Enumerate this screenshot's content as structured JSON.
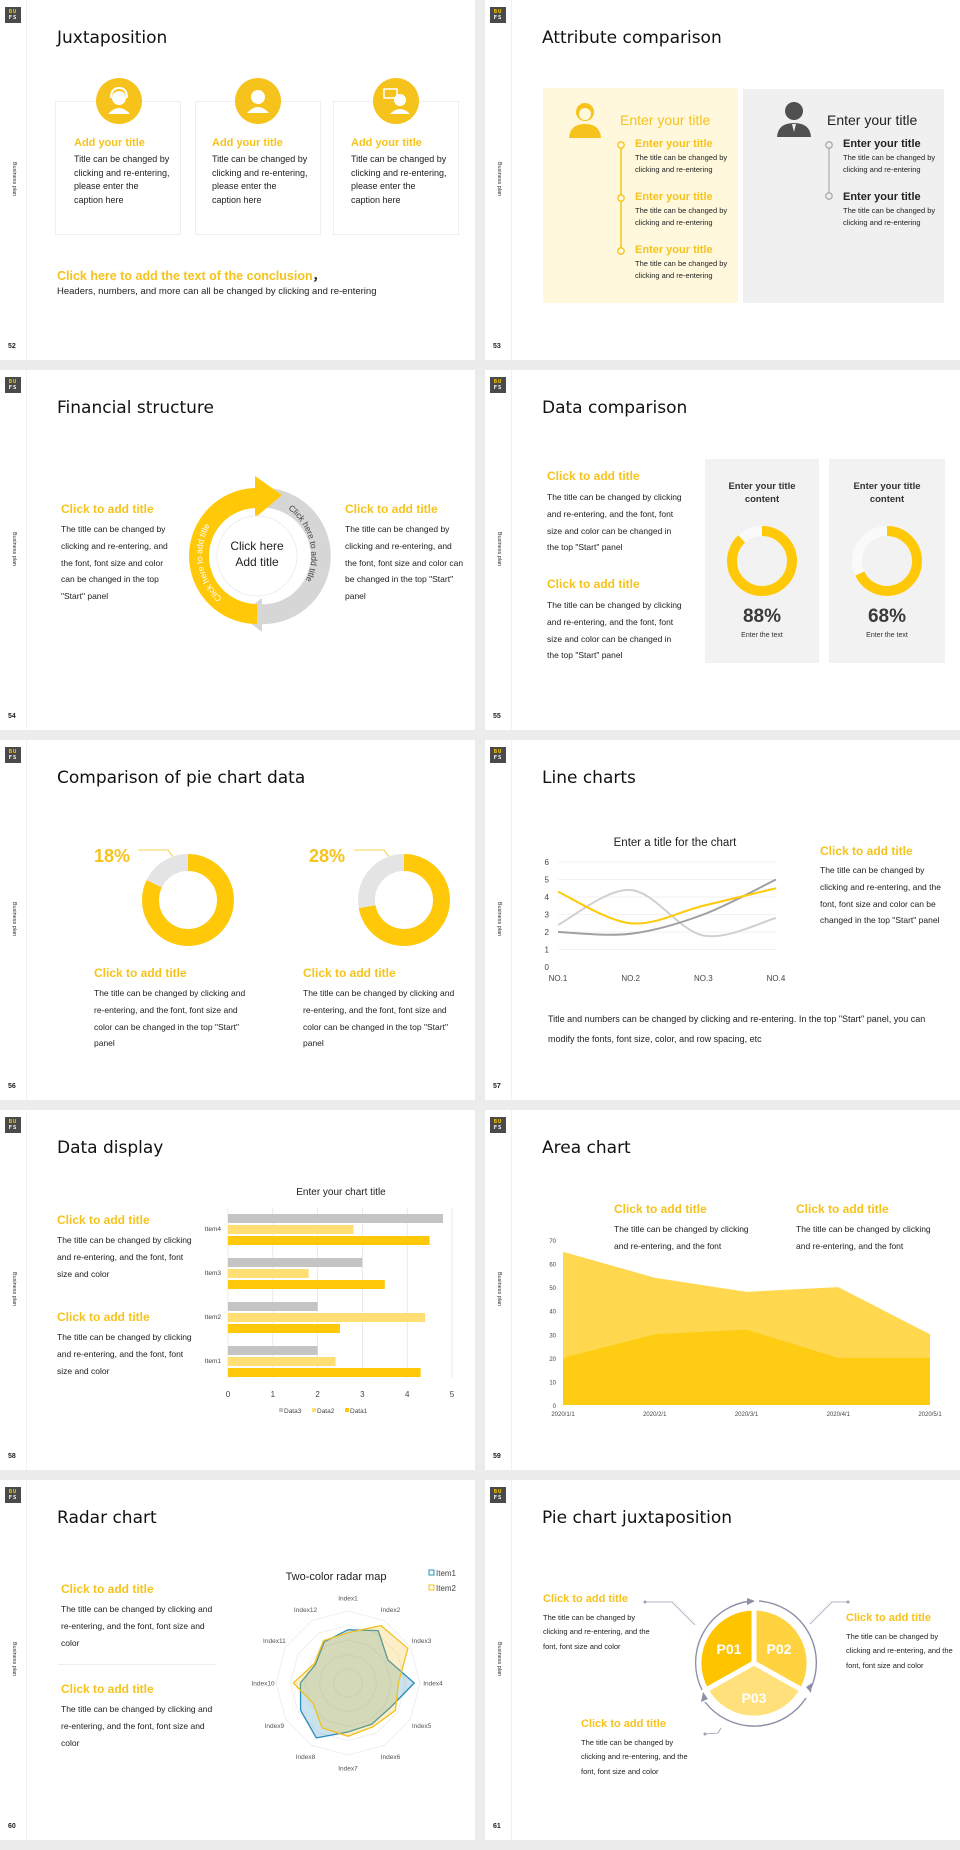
{
  "common": {
    "logo_top": "BU",
    "logo_bottom": "FS",
    "side_label": "Business plan"
  },
  "colors": {
    "yellow": "#FFC90A",
    "yellow_text": "#F6C31C",
    "light_yellow": "#FFDD6B",
    "gray": "#BDBDBD",
    "dark_gray": "#8C8C8C",
    "blue": "#2A8CB8"
  },
  "s52": {
    "page": "52",
    "title": "Juxtaposition",
    "cards": [
      {
        "icon": "customer-service-icon",
        "title": "Add your title",
        "body": "Title can be changed by clicking and re-entering, please enter the caption here"
      },
      {
        "icon": "person-icon",
        "title": "Add your title",
        "body": "Title can be changed by clicking and re-entering, please enter the caption here"
      },
      {
        "icon": "consultant-icon",
        "title": "Add your title",
        "body": "Title can be changed by clicking and re-entering, please enter the caption here"
      }
    ],
    "conclusion": "Click here to add the text of the conclusion",
    "comma": "，",
    "sub": "Headers, numbers, and more can all be changed by clicking and re-entering"
  },
  "s53": {
    "page": "53",
    "title": "Attribute comparison",
    "left": {
      "heading": "Enter your title",
      "items": [
        {
          "title": "Enter your title",
          "body": "The title can be changed by clicking and re-entering"
        },
        {
          "title": "Enter your title",
          "body": "The title can be changed by clicking and re-entering"
        },
        {
          "title": "Enter your title",
          "body": "The title can be changed by clicking and re-entering"
        }
      ]
    },
    "right": {
      "heading": "Enter your title",
      "items": [
        {
          "title": "Enter your title",
          "body": "The title can be changed by clicking and re-entering"
        },
        {
          "title": "Enter your title",
          "body": "The title can be changed by clicking and re-entering"
        }
      ]
    }
  },
  "s54": {
    "page": "54",
    "title": "Financial structure",
    "left": {
      "title": "Click to add title",
      "body": "The title can be changed by clicking and re-entering, and the font, font size and color can be changed in the top \"Start\" panel"
    },
    "right": {
      "title": "Click to add title",
      "body": "The title can be changed by clicking and re-entering, and the font, font size and color can be changed in the top \"Start\" panel"
    },
    "center_line1": "Click here",
    "center_line2": "Add title",
    "arc_left": "Click here to add title",
    "arc_right": "Click here to add title"
  },
  "s55": {
    "page": "55",
    "title": "Data comparison",
    "blocks": [
      {
        "title": "Click to add title",
        "body": "The title can be changed by clicking and re-entering, and the font, font size and color can be changed in the top \"Start\" panel"
      },
      {
        "title": "Click to add title",
        "body": "The title can be changed by clicking and re-entering, and the font, font size and color can be changed in the top \"Start\" panel"
      }
    ],
    "panels": [
      {
        "heading1": "Enter your title",
        "heading2": "content",
        "value": "88%",
        "caption": "Enter the text"
      },
      {
        "heading1": "Enter your title",
        "heading2": "content",
        "value": "68%",
        "caption": "Enter the text"
      }
    ]
  },
  "s56": {
    "page": "56",
    "title": "Comparison of pie chart data",
    "blocks": [
      {
        "value": "18%",
        "title": "Click to add title",
        "body": "The title can be changed by clicking and re-entering, and the font, font size and color can be changed in the top \"Start\" panel"
      },
      {
        "value": "28%",
        "title": "Click to add title",
        "body": "The title can be changed by clicking and re-entering, and the font, font size and color can be changed in the top \"Start\" panel"
      }
    ]
  },
  "s57": {
    "page": "57",
    "title": "Line charts",
    "side": {
      "title": "Click to add title",
      "body": "The title can be changed by clicking and re-entering, and the font, font size and color can be changed in the top \"Start\" panel"
    },
    "note": "Title and numbers can be changed by clicking and re-entering. In the top \"Start\" panel, you can modify the fonts, font size, color, and row spacing, etc"
  },
  "s58": {
    "page": "58",
    "title": "Data display",
    "blocks": [
      {
        "title": "Click to add title",
        "body": "The title can be changed by clicking and re-entering, and the font, font size and color"
      },
      {
        "title": "Click to add title",
        "body": "The title can be changed by clicking and re-entering, and the font, font size and color"
      }
    ]
  },
  "s59": {
    "page": "59",
    "title": "Area chart",
    "blocks": [
      {
        "title": "Click to add title",
        "body": "The title can be changed by clicking and re-entering, and the font"
      },
      {
        "title": "Click to add title",
        "body": "The title can be changed by clicking and re-entering, and the font"
      }
    ]
  },
  "s60": {
    "page": "60",
    "title": "Radar chart",
    "blocks": [
      {
        "title": "Click to add title",
        "body": "The title can be changed by clicking and re-entering, and the font, font size and color"
      },
      {
        "title": "Click to add title",
        "body": "The title can be changed by clicking and re-entering, and the font, font size and color"
      }
    ]
  },
  "s61": {
    "page": "61",
    "title": "Pie chart juxtaposition",
    "blocks": [
      {
        "title": "Click to add title",
        "body": "The title can be changed by clicking and re-entering, and the font, font size and color"
      },
      {
        "title": "Click to add title",
        "body": "The title can be changed by clicking and re-entering, and the font, font size and color"
      },
      {
        "title": "Click to add title",
        "body": "The title can be changed by clicking and re-entering, and the font, font size and color"
      }
    ],
    "slices": [
      "P01",
      "P02",
      "P03"
    ]
  },
  "chart_data": [
    {
      "id": "donut-88",
      "type": "pie",
      "values": [
        88,
        12
      ],
      "label": "88%"
    },
    {
      "id": "donut-68",
      "type": "pie",
      "values": [
        68,
        32
      ],
      "label": "68%"
    },
    {
      "id": "donut-18",
      "type": "pie",
      "values": [
        82,
        18
      ],
      "label": "18%"
    },
    {
      "id": "donut-28",
      "type": "pie",
      "values": [
        72,
        28
      ],
      "label": "28%"
    },
    {
      "id": "line",
      "type": "line",
      "title": "Enter a title for the chart",
      "categories": [
        "NO.1",
        "NO.2",
        "NO.3",
        "NO.4"
      ],
      "ylim": [
        0,
        6
      ],
      "yticks": [
        0,
        1,
        2,
        3,
        4,
        5,
        6
      ],
      "grid": true,
      "series": [
        {
          "color": "#FFC90A",
          "values": [
            4.3,
            2.5,
            3.5,
            4.5
          ]
        },
        {
          "color": "#D0D0D0",
          "values": [
            2.4,
            4.4,
            1.8,
            2.8
          ]
        },
        {
          "color": "#A0A0A0",
          "values": [
            2.0,
            1.9,
            3.0,
            5.0
          ]
        }
      ]
    },
    {
      "id": "bar",
      "type": "bar",
      "orientation": "horizontal",
      "title": "Enter your chart title",
      "categories": [
        "Item1",
        "Item2",
        "Item3",
        "Item4"
      ],
      "xlim": [
        0,
        5
      ],
      "xticks": [
        0,
        1,
        2,
        3,
        4,
        5
      ],
      "grid": true,
      "legend": "bottom",
      "series": [
        {
          "name": "Data3",
          "color": "#C4C4C4",
          "values": [
            2,
            2,
            3,
            4.8
          ]
        },
        {
          "name": "Data2",
          "color": "#FFDF73",
          "values": [
            2.4,
            4.4,
            1.8,
            2.8
          ]
        },
        {
          "name": "Data1",
          "color": "#FFC90A",
          "values": [
            4.3,
            2.5,
            3.5,
            4.5
          ]
        }
      ]
    },
    {
      "id": "area",
      "type": "area",
      "categories": [
        "2020/1/1",
        "2020/2/1",
        "2020/3/1",
        "2020/4/1",
        "2020/5/1"
      ],
      "ylim": [
        0,
        70
      ],
      "yticks": [
        0,
        10,
        20,
        30,
        40,
        50,
        60,
        70
      ],
      "series": [
        {
          "color": "#FFD84F",
          "values": [
            65,
            54,
            48,
            50,
            30
          ]
        },
        {
          "color": "#FFCC14",
          "values": [
            20,
            30,
            32,
            20,
            20
          ]
        }
      ]
    },
    {
      "id": "radar",
      "type": "radar",
      "title": "Two-color radar map",
      "legend": "top-right",
      "categories": [
        "Index1",
        "Index2",
        "Index3",
        "Index4",
        "Index5",
        "Index6",
        "Index7",
        "Index8",
        "Index9",
        "Index10",
        "Index11",
        "Index12"
      ],
      "rmax": 5,
      "series": [
        {
          "name": "Item1",
          "color": "#2A8CB8",
          "values": [
            3.7,
            4.2,
            3.2,
            4.6,
            3.4,
            3.3,
            3.4,
            4.4,
            3.8,
            3.3,
            2.6,
            3.3
          ]
        },
        {
          "name": "Item2",
          "color": "#F2C01E",
          "values": [
            3.5,
            4.6,
            4.8,
            3.5,
            3.8,
            3.5,
            3.7,
            3.6,
            2.8,
            3.8,
            2.7,
            3.4
          ]
        }
      ]
    }
  ]
}
